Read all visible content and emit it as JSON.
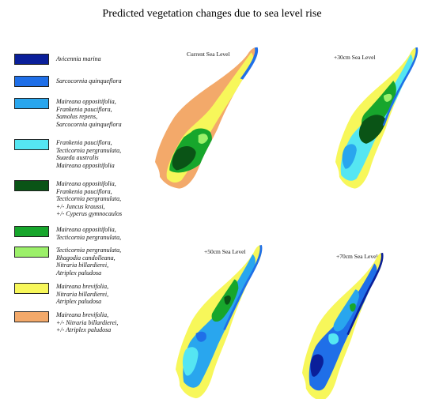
{
  "title": "Predicted vegetation changes due to sea level rise",
  "legend": [
    {
      "color": "#0a1f9a",
      "lines": [
        "Avicennia marina"
      ]
    },
    {
      "color": "#1f6fe8",
      "lines": [
        "Sarcocornia quinqueflora"
      ]
    },
    {
      "color": "#29a6ee",
      "lines": [
        "Maireana oppositifolia,",
        "Frankenia pauciflora,",
        "Samolus repens,",
        "Sarcocornia quinqueflora"
      ]
    },
    {
      "color": "#55e6f2",
      "lines": [
        "Frankenia pauciflora,",
        "Tecticornia pergranulata,",
        "Suaeda australis",
        "Maireana oppositifolia"
      ]
    },
    {
      "color": "#0a5416",
      "lines": [
        "Maireana oppositifolia,",
        "Frankenia pauciflora,",
        "Tecticornia pergranulata,",
        "+/- Juncus kraussi,",
        "+/- Cyperus gymnocaulos"
      ]
    },
    {
      "color": "#17a62c",
      "lines": [
        "Maireana oppositifolia,",
        "Tecticornia pergranulata,"
      ]
    },
    {
      "color": "#9cf06a",
      "lines": [
        "Tecticornia pergranulata,",
        "Rhagodia candolleana,",
        "Nitraria billardierei,",
        "Atriplex paludosa"
      ]
    },
    {
      "color": "#f7f75a",
      "lines": [
        "Maireana brevifolia,",
        "Nitraria billardierei,",
        "Atriplex paludosa"
      ]
    },
    {
      "color": "#f3a96a",
      "lines": [
        "Maireana brevifolia,",
        "+/- Nitraria billardierei,",
        "+/- Atriplex paludosa"
      ]
    }
  ],
  "panels": [
    {
      "label": "Current Sea Level"
    },
    {
      "label": "+30cm Sea Level"
    },
    {
      "label": "+50cm Sea Level"
    },
    {
      "label": "+70cm Sea Level"
    }
  ]
}
